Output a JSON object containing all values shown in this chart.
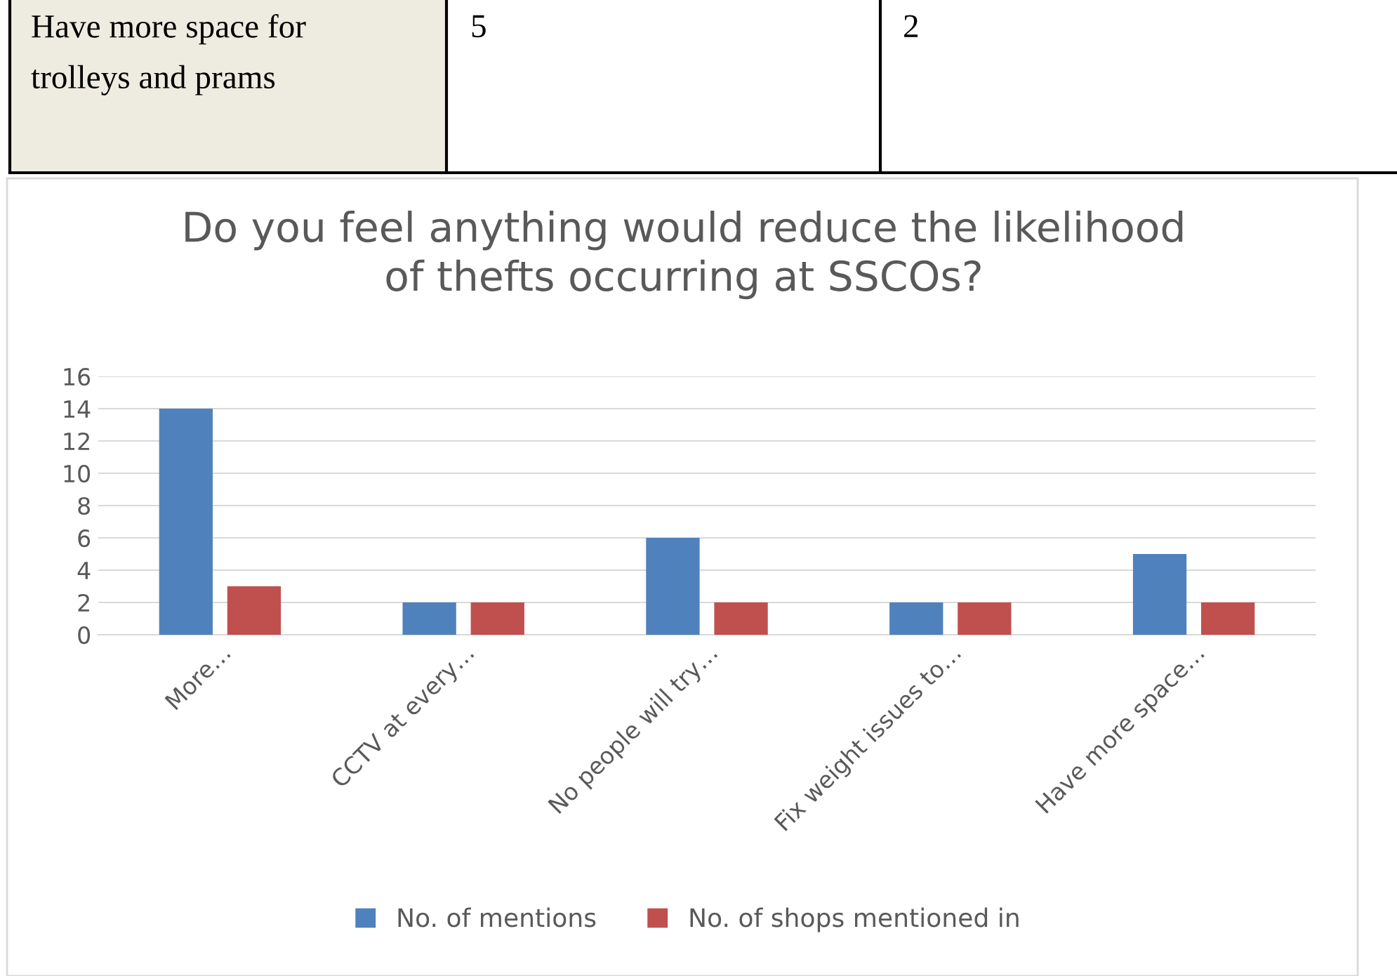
{
  "chart_data": {
    "type": "bar",
    "title": "Do you feel anything would reduce the likelihood\nof thefts occurring at SSCOs?",
    "categories": [
      "More…",
      "CCTV at every…",
      "No people will try…",
      "Fix weight issues to…",
      "Have more space…"
    ],
    "series": [
      {
        "name": "No. of mentions",
        "color": "#4f81bd",
        "values": [
          14,
          2,
          6,
          2,
          5
        ]
      },
      {
        "name": "No. of shops mentioned in",
        "color": "#c0504d",
        "values": [
          3,
          2,
          2,
          2,
          2
        ]
      }
    ],
    "ylim": [
      0,
      16
    ],
    "yticks": [
      0,
      2,
      4,
      6,
      8,
      10,
      12,
      14,
      16
    ],
    "grid": "y",
    "legend": "bottom",
    "annotations": [
      "Have more space for\ntrolleys and prams",
      "5",
      "2"
    ]
  }
}
